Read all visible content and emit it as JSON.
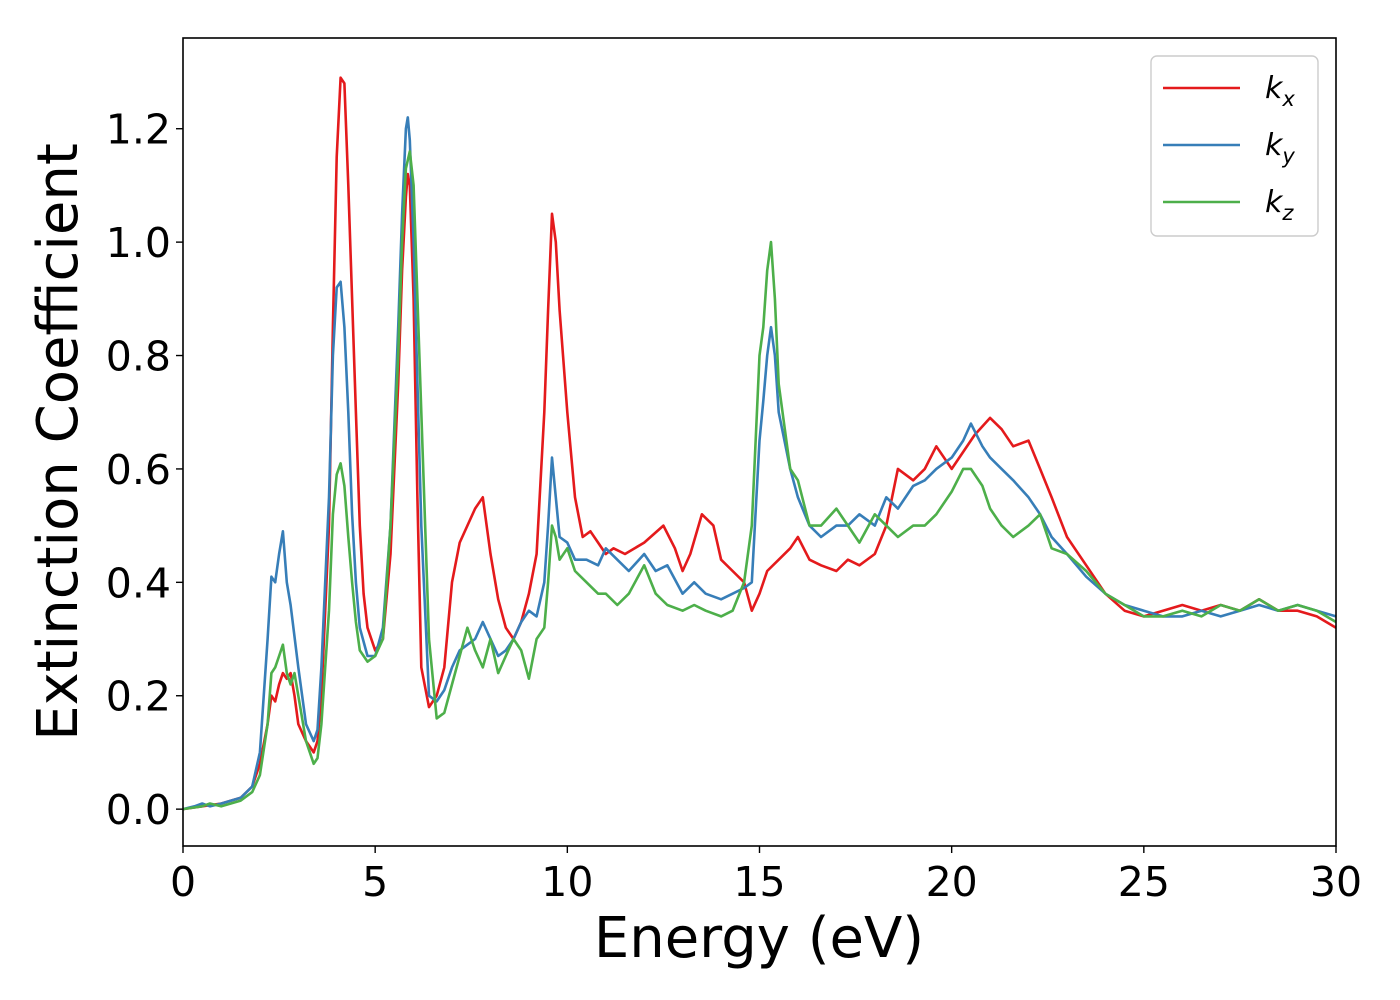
{
  "chart_data": {
    "type": "line",
    "xlabel": "Energy (eV)",
    "ylabel": "Extinction Coefficient",
    "xlim": [
      0,
      30
    ],
    "ylim": [
      -0.065,
      1.36
    ],
    "xticks": [
      "0",
      "5",
      "10",
      "15",
      "20",
      "25",
      "30"
    ],
    "yticks": [
      "0.0",
      "0.2",
      "0.4",
      "0.6",
      "0.8",
      "1.0",
      "1.2"
    ],
    "grid": false,
    "legend_position": "top-right",
    "series": [
      {
        "name": "k",
        "subscript": "x",
        "color": "#e41a1c",
        "x": [
          0,
          0.5,
          1.0,
          1.5,
          1.8,
          2.0,
          2.2,
          2.3,
          2.4,
          2.5,
          2.6,
          2.7,
          2.8,
          2.9,
          3.0,
          3.2,
          3.4,
          3.5,
          3.6,
          3.8,
          3.9,
          4.0,
          4.1,
          4.2,
          4.3,
          4.4,
          4.5,
          4.6,
          4.7,
          4.8,
          5.0,
          5.2,
          5.4,
          5.6,
          5.7,
          5.8,
          5.85,
          5.9,
          6.0,
          6.1,
          6.2,
          6.4,
          6.6,
          6.8,
          7.0,
          7.2,
          7.4,
          7.6,
          7.8,
          8.0,
          8.2,
          8.4,
          8.6,
          8.8,
          9.0,
          9.2,
          9.4,
          9.5,
          9.6,
          9.7,
          9.8,
          10.0,
          10.2,
          10.4,
          10.6,
          10.8,
          11.0,
          11.2,
          11.5,
          12.0,
          12.5,
          12.8,
          13.0,
          13.2,
          13.5,
          13.8,
          14.0,
          14.3,
          14.6,
          14.8,
          15.0,
          15.2,
          15.5,
          15.8,
          16.0,
          16.3,
          16.6,
          17.0,
          17.3,
          17.6,
          18.0,
          18.3,
          18.6,
          19.0,
          19.3,
          19.6,
          20.0,
          20.3,
          20.6,
          21.0,
          21.3,
          21.6,
          22.0,
          22.3,
          22.6,
          23.0,
          23.5,
          24.0,
          24.5,
          25.0,
          25.5,
          26.0,
          26.5,
          27.0,
          27.5,
          28.0,
          28.5,
          29.0,
          29.5,
          30.0
        ],
        "y": [
          0,
          0.005,
          0.01,
          0.02,
          0.04,
          0.08,
          0.15,
          0.2,
          0.19,
          0.22,
          0.24,
          0.23,
          0.24,
          0.2,
          0.15,
          0.12,
          0.1,
          0.12,
          0.2,
          0.5,
          0.85,
          1.15,
          1.29,
          1.28,
          1.1,
          0.9,
          0.7,
          0.5,
          0.38,
          0.32,
          0.28,
          0.3,
          0.45,
          0.75,
          0.95,
          1.08,
          1.12,
          1.1,
          0.9,
          0.55,
          0.25,
          0.18,
          0.2,
          0.25,
          0.4,
          0.47,
          0.5,
          0.53,
          0.55,
          0.45,
          0.37,
          0.32,
          0.3,
          0.33,
          0.38,
          0.45,
          0.7,
          0.88,
          1.05,
          1.0,
          0.88,
          0.7,
          0.55,
          0.48,
          0.49,
          0.47,
          0.45,
          0.46,
          0.45,
          0.47,
          0.5,
          0.46,
          0.42,
          0.45,
          0.52,
          0.5,
          0.44,
          0.42,
          0.4,
          0.35,
          0.38,
          0.42,
          0.44,
          0.46,
          0.48,
          0.44,
          0.43,
          0.42,
          0.44,
          0.43,
          0.45,
          0.5,
          0.6,
          0.58,
          0.6,
          0.64,
          0.6,
          0.63,
          0.66,
          0.69,
          0.67,
          0.64,
          0.65,
          0.6,
          0.55,
          0.48,
          0.43,
          0.38,
          0.35,
          0.34,
          0.35,
          0.36,
          0.35,
          0.36,
          0.35,
          0.37,
          0.35,
          0.35,
          0.34,
          0.32
        ]
      },
      {
        "name": "k",
        "subscript": "y",
        "color": "#377eb8",
        "x": [
          0,
          0.3,
          0.5,
          0.7,
          1.0,
          1.5,
          1.8,
          2.0,
          2.2,
          2.3,
          2.4,
          2.5,
          2.6,
          2.7,
          2.8,
          3.0,
          3.2,
          3.4,
          3.5,
          3.6,
          3.8,
          3.9,
          4.0,
          4.1,
          4.2,
          4.3,
          4.4,
          4.5,
          4.6,
          4.8,
          5.0,
          5.2,
          5.4,
          5.6,
          5.7,
          5.8,
          5.85,
          5.9,
          6.0,
          6.2,
          6.4,
          6.6,
          6.8,
          7.0,
          7.2,
          7.4,
          7.6,
          7.8,
          8.0,
          8.2,
          8.4,
          8.6,
          8.8,
          9.0,
          9.2,
          9.4,
          9.5,
          9.6,
          9.7,
          9.8,
          10.0,
          10.2,
          10.5,
          10.8,
          11.0,
          11.3,
          11.6,
          12.0,
          12.3,
          12.6,
          13.0,
          13.3,
          13.6,
          14.0,
          14.3,
          14.6,
          14.8,
          15.0,
          15.1,
          15.2,
          15.3,
          15.4,
          15.5,
          15.8,
          16.0,
          16.3,
          16.6,
          17.0,
          17.3,
          17.6,
          18.0,
          18.3,
          18.6,
          19.0,
          19.3,
          19.6,
          20.0,
          20.3,
          20.5,
          20.8,
          21.0,
          21.3,
          21.6,
          22.0,
          22.3,
          22.6,
          23.0,
          23.5,
          24.0,
          24.5,
          25.0,
          25.5,
          26.0,
          26.5,
          27.0,
          27.5,
          28.0,
          28.5,
          29.0,
          29.5,
          30.0
        ],
        "y": [
          0,
          0.005,
          0.01,
          0.005,
          0.01,
          0.02,
          0.04,
          0.1,
          0.3,
          0.41,
          0.4,
          0.45,
          0.49,
          0.4,
          0.36,
          0.25,
          0.15,
          0.12,
          0.14,
          0.25,
          0.55,
          0.8,
          0.92,
          0.93,
          0.85,
          0.7,
          0.52,
          0.4,
          0.32,
          0.27,
          0.27,
          0.32,
          0.5,
          0.85,
          1.05,
          1.2,
          1.22,
          1.18,
          1.0,
          0.5,
          0.2,
          0.19,
          0.21,
          0.25,
          0.28,
          0.29,
          0.3,
          0.33,
          0.3,
          0.27,
          0.28,
          0.3,
          0.33,
          0.35,
          0.34,
          0.4,
          0.5,
          0.62,
          0.55,
          0.48,
          0.47,
          0.44,
          0.44,
          0.43,
          0.46,
          0.44,
          0.42,
          0.45,
          0.42,
          0.43,
          0.38,
          0.4,
          0.38,
          0.37,
          0.38,
          0.39,
          0.4,
          0.65,
          0.72,
          0.8,
          0.85,
          0.8,
          0.7,
          0.6,
          0.55,
          0.5,
          0.48,
          0.5,
          0.5,
          0.52,
          0.5,
          0.55,
          0.53,
          0.57,
          0.58,
          0.6,
          0.62,
          0.65,
          0.68,
          0.64,
          0.62,
          0.6,
          0.58,
          0.55,
          0.52,
          0.48,
          0.45,
          0.41,
          0.38,
          0.36,
          0.35,
          0.34,
          0.34,
          0.35,
          0.34,
          0.35,
          0.36,
          0.35,
          0.36,
          0.35,
          0.34
        ]
      },
      {
        "name": "k",
        "subscript": "z",
        "color": "#4daf4a",
        "x": [
          0,
          0.5,
          0.7,
          1.0,
          1.5,
          1.8,
          2.0,
          2.2,
          2.3,
          2.4,
          2.5,
          2.6,
          2.7,
          2.8,
          2.9,
          3.0,
          3.2,
          3.4,
          3.5,
          3.6,
          3.8,
          3.9,
          4.0,
          4.1,
          4.2,
          4.3,
          4.4,
          4.5,
          4.6,
          4.8,
          5.0,
          5.2,
          5.4,
          5.6,
          5.7,
          5.8,
          5.9,
          6.0,
          6.2,
          6.4,
          6.6,
          6.8,
          7.0,
          7.2,
          7.4,
          7.6,
          7.8,
          8.0,
          8.2,
          8.4,
          8.6,
          8.8,
          9.0,
          9.2,
          9.4,
          9.5,
          9.6,
          9.7,
          9.8,
          10.0,
          10.2,
          10.5,
          10.8,
          11.0,
          11.3,
          11.6,
          12.0,
          12.3,
          12.6,
          13.0,
          13.3,
          13.6,
          14.0,
          14.3,
          14.6,
          14.8,
          15.0,
          15.1,
          15.2,
          15.3,
          15.4,
          15.5,
          15.8,
          16.0,
          16.3,
          16.6,
          17.0,
          17.3,
          17.6,
          18.0,
          18.3,
          18.6,
          19.0,
          19.3,
          19.6,
          20.0,
          20.3,
          20.5,
          20.8,
          21.0,
          21.3,
          21.6,
          22.0,
          22.3,
          22.6,
          23.0,
          23.5,
          24.0,
          24.5,
          25.0,
          25.5,
          26.0,
          26.5,
          27.0,
          27.5,
          28.0,
          28.5,
          29.0,
          29.5,
          30.0
        ],
        "y": [
          0,
          0.005,
          0.01,
          0.005,
          0.015,
          0.03,
          0.06,
          0.15,
          0.24,
          0.25,
          0.27,
          0.29,
          0.24,
          0.22,
          0.24,
          0.2,
          0.12,
          0.08,
          0.09,
          0.15,
          0.35,
          0.52,
          0.59,
          0.61,
          0.57,
          0.48,
          0.4,
          0.33,
          0.28,
          0.26,
          0.27,
          0.3,
          0.5,
          0.8,
          1.0,
          1.13,
          1.16,
          1.1,
          0.7,
          0.3,
          0.16,
          0.17,
          0.22,
          0.27,
          0.32,
          0.28,
          0.25,
          0.3,
          0.24,
          0.27,
          0.3,
          0.28,
          0.23,
          0.3,
          0.32,
          0.4,
          0.5,
          0.48,
          0.44,
          0.46,
          0.42,
          0.4,
          0.38,
          0.38,
          0.36,
          0.38,
          0.43,
          0.38,
          0.36,
          0.35,
          0.36,
          0.35,
          0.34,
          0.35,
          0.4,
          0.5,
          0.8,
          0.85,
          0.95,
          1.0,
          0.9,
          0.75,
          0.6,
          0.58,
          0.5,
          0.5,
          0.53,
          0.5,
          0.47,
          0.52,
          0.5,
          0.48,
          0.5,
          0.5,
          0.52,
          0.56,
          0.6,
          0.6,
          0.57,
          0.53,
          0.5,
          0.48,
          0.5,
          0.52,
          0.46,
          0.45,
          0.42,
          0.38,
          0.36,
          0.34,
          0.34,
          0.35,
          0.34,
          0.36,
          0.35,
          0.37,
          0.35,
          0.36,
          0.35,
          0.33
        ]
      }
    ]
  }
}
